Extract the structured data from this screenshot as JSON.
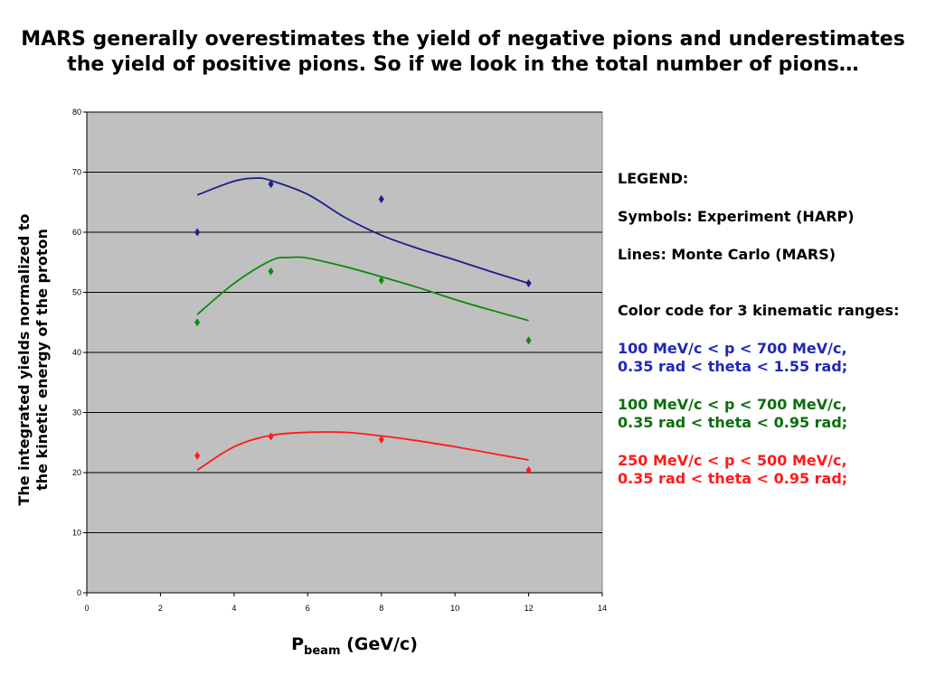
{
  "slide": {
    "title_line1": "MARS generally overestimates the yield of negative pions and underestimates",
    "title_line2": "the yield of positive pions. So if we look in the total number of pions…"
  },
  "legend": {
    "heading": "LEGEND:",
    "symbols": "Symbols: Experiment (HARP)",
    "lines": "Lines: Monte Carlo (MARS)",
    "color_code": "Color code for 3 kinematic ranges:",
    "ranges": [
      {
        "line1": "100 MeV/c < p < 700 MeV/c,",
        "line2": "0.35 rad < theta < 1.55 rad;",
        "color": "#1f28b8"
      },
      {
        "line1": "100 MeV/c < p < 700 MeV/c,",
        "line2": "0.35 rad < theta < 0.95 rad;",
        "color": "#0c6d0c"
      },
      {
        "line1": "250 MeV/c < p < 500 MeV/c,",
        "line2": "0.35 rad < theta < 0.95 rad;",
        "color": "#ff1a1a"
      }
    ]
  },
  "chart_data": {
    "type": "scatter",
    "xlabel_main": "P",
    "xlabel_sub": "beam",
    "xlabel_unit": "(GeV/c)",
    "ylabel_line1": "The integrated yields normalized to",
    "ylabel_line2": "the kinetic energy of the proton",
    "xlim": [
      0,
      14
    ],
    "ylim": [
      0,
      80
    ],
    "x_ticks": [
      0,
      2,
      4,
      6,
      8,
      10,
      12,
      14
    ],
    "y_ticks": [
      0,
      10,
      20,
      30,
      40,
      50,
      60,
      70,
      80
    ],
    "grid": "horizontal",
    "plot_background": "#c0c0c0",
    "series": [
      {
        "color": "#1a1f8c",
        "points": [
          [
            3,
            60
          ],
          [
            5,
            68
          ],
          [
            8,
            65.5
          ],
          [
            12,
            51.5
          ]
        ],
        "curve": [
          [
            3,
            66.2
          ],
          [
            4,
            68.5
          ],
          [
            4.6,
            69
          ],
          [
            5,
            68.6
          ],
          [
            6,
            66.3
          ],
          [
            7,
            62.5
          ],
          [
            8,
            59.5
          ],
          [
            9,
            57.3
          ],
          [
            10,
            55.4
          ],
          [
            11,
            53.4
          ],
          [
            12,
            51.5
          ]
        ]
      },
      {
        "color": "#0e8a0e",
        "points": [
          [
            3,
            45
          ],
          [
            5,
            53.5
          ],
          [
            8,
            52
          ],
          [
            12,
            42
          ]
        ],
        "curve": [
          [
            3,
            46.3
          ],
          [
            4,
            51.5
          ],
          [
            5,
            55.3
          ],
          [
            5.5,
            55.8
          ],
          [
            6,
            55.7
          ],
          [
            7,
            54.3
          ],
          [
            8,
            52.6
          ],
          [
            9,
            50.8
          ],
          [
            10,
            48.8
          ],
          [
            11,
            47
          ],
          [
            12,
            45.3
          ]
        ]
      },
      {
        "color": "#ff1a1a",
        "points": [
          [
            3,
            22.8
          ],
          [
            5,
            26
          ],
          [
            8,
            25.5
          ],
          [
            12,
            20.4
          ]
        ],
        "curve": [
          [
            3,
            20.4
          ],
          [
            4,
            24.3
          ],
          [
            5,
            26.2
          ],
          [
            6,
            26.7
          ],
          [
            7,
            26.7
          ],
          [
            8,
            26.1
          ],
          [
            9,
            25.3
          ],
          [
            10,
            24.3
          ],
          [
            11,
            23.2
          ],
          [
            12,
            22.1
          ]
        ]
      }
    ]
  }
}
